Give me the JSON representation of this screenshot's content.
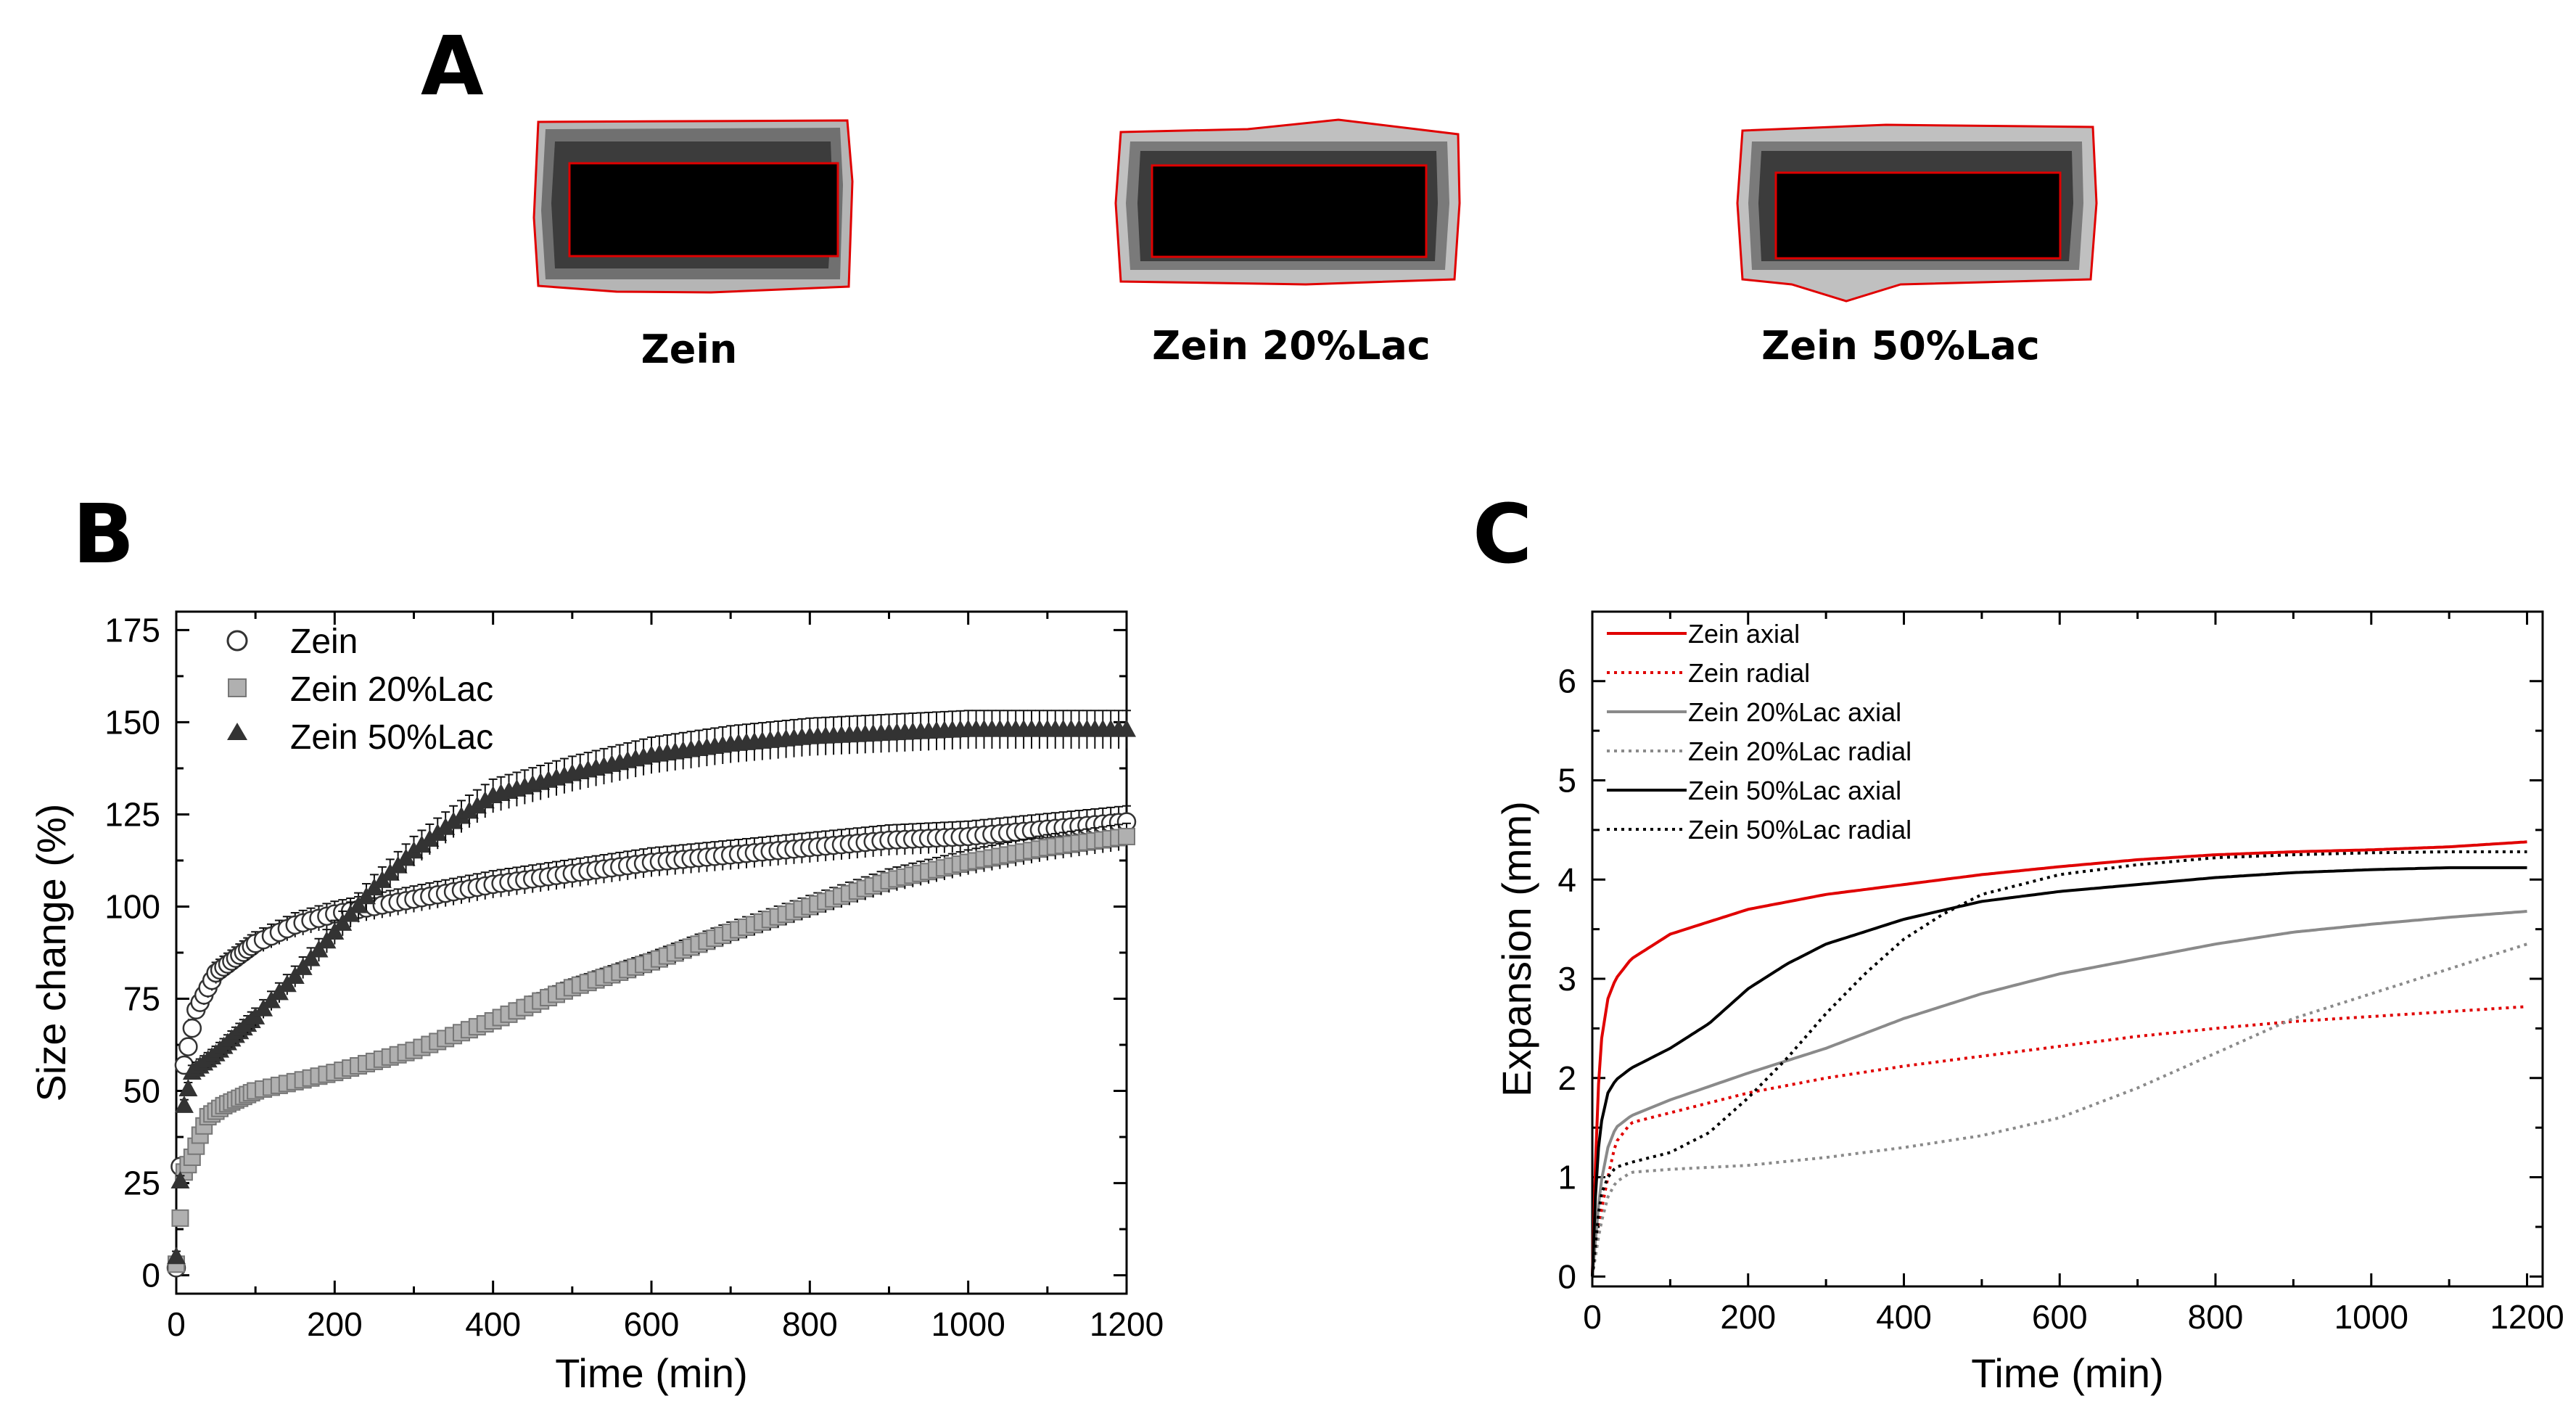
{
  "panel_a": {
    "letter": "A",
    "samples": [
      {
        "label": "Zein"
      },
      {
        "label": "Zein 20%Lac"
      },
      {
        "label": "Zein 50%Lac"
      }
    ]
  },
  "colors": {
    "zein": "#e00000",
    "lac20": "#8a8a8a",
    "lac50": "#000000",
    "outline": "#e00000"
  },
  "chart_data": [
    {
      "id": "B",
      "letter": "B",
      "type": "scatter",
      "xlabel": "Time (min)",
      "ylabel": "Size change (%)",
      "xlim": [
        0,
        1200
      ],
      "ylim": [
        -5,
        180
      ],
      "xticks": [
        0,
        200,
        400,
        600,
        800,
        1000,
        1200
      ],
      "yticks": [
        0,
        25,
        50,
        75,
        100,
        125,
        150,
        175
      ],
      "legend_position": "top-left",
      "error_bars": true,
      "series": [
        {
          "name": "Zein",
          "marker": "circle-open",
          "x": [
            0,
            10,
            25,
            50,
            100,
            150,
            200,
            300,
            400,
            500,
            600,
            700,
            800,
            900,
            1000,
            1100,
            1200
          ],
          "y": [
            2,
            57,
            72,
            82,
            90,
            95,
            98,
            102,
            106,
            109,
            112,
            114,
            116,
            118,
            119,
            121,
            123
          ]
        },
        {
          "name": "Zein 20%Lac",
          "marker": "square-gray",
          "x": [
            0,
            10,
            20,
            30,
            40,
            60,
            100,
            200,
            300,
            400,
            500,
            600,
            700,
            800,
            900,
            1000,
            1100,
            1200
          ],
          "y": [
            3,
            28,
            32,
            38,
            43,
            46,
            50,
            55,
            61,
            69,
            78,
            85,
            93,
            100,
            107,
            112,
            116,
            119
          ]
        },
        {
          "name": "Zein 50%Lac",
          "marker": "triangle-filled",
          "x": [
            0,
            10,
            20,
            50,
            100,
            150,
            200,
            250,
            300,
            350,
            400,
            500,
            600,
            700,
            800,
            900,
            1000,
            1100,
            1200
          ],
          "y": [
            5,
            46,
            55,
            60,
            70,
            81,
            93,
            105,
            115,
            123,
            130,
            136,
            141,
            144,
            146,
            147,
            148,
            148,
            148
          ]
        }
      ]
    },
    {
      "id": "C",
      "letter": "C",
      "type": "line",
      "xlabel": "Time (min)",
      "ylabel": "Expansion (mm)",
      "xlim": [
        0,
        1220
      ],
      "ylim": [
        -0.1,
        6.7
      ],
      "xticks": [
        0,
        200,
        400,
        600,
        800,
        1000,
        1200
      ],
      "yticks": [
        0,
        1,
        2,
        3,
        4,
        5,
        6
      ],
      "legend_position": "top-left",
      "series": [
        {
          "name": "Zein axial",
          "style": "solid",
          "color_key": "zein",
          "x": [
            0,
            5,
            10,
            20,
            30,
            50,
            100,
            200,
            300,
            400,
            500,
            600,
            700,
            800,
            900,
            1000,
            1100,
            1200
          ],
          "y": [
            0,
            1.4,
            2.3,
            2.8,
            3.0,
            3.2,
            3.45,
            3.7,
            3.85,
            3.95,
            4.05,
            4.13,
            4.2,
            4.25,
            4.28,
            4.3,
            4.33,
            4.38
          ]
        },
        {
          "name": "Zein radial",
          "style": "dotted",
          "color_key": "zein",
          "x": [
            0,
            10,
            20,
            30,
            50,
            100,
            200,
            300,
            400,
            500,
            600,
            700,
            800,
            900,
            1000,
            1100,
            1200
          ],
          "y": [
            0,
            0.6,
            1.0,
            1.35,
            1.55,
            1.65,
            1.85,
            2.0,
            2.12,
            2.22,
            2.32,
            2.42,
            2.5,
            2.57,
            2.62,
            2.67,
            2.72
          ]
        },
        {
          "name": "Zein 20%Lac axial",
          "style": "solid",
          "color_key": "lac20",
          "x": [
            0,
            10,
            20,
            30,
            50,
            100,
            200,
            300,
            400,
            500,
            600,
            700,
            800,
            900,
            1000,
            1100,
            1200
          ],
          "y": [
            0,
            0.9,
            1.3,
            1.5,
            1.62,
            1.78,
            2.05,
            2.3,
            2.6,
            2.85,
            3.05,
            3.2,
            3.35,
            3.47,
            3.55,
            3.62,
            3.68
          ]
        },
        {
          "name": "Zein 20%Lac radial",
          "style": "dotted",
          "color_key": "lac20",
          "x": [
            0,
            10,
            20,
            30,
            50,
            100,
            200,
            300,
            400,
            500,
            600,
            700,
            800,
            900,
            1000,
            1100,
            1200
          ],
          "y": [
            0,
            0.5,
            0.8,
            0.95,
            1.05,
            1.08,
            1.12,
            1.2,
            1.3,
            1.42,
            1.6,
            1.9,
            2.25,
            2.6,
            2.85,
            3.1,
            3.35
          ]
        },
        {
          "name": "Zein 50%Lac axial",
          "style": "solid",
          "color_key": "lac50",
          "x": [
            0,
            5,
            10,
            20,
            30,
            50,
            100,
            150,
            200,
            250,
            300,
            400,
            500,
            600,
            700,
            800,
            900,
            1000,
            1100,
            1200
          ],
          "y": [
            0,
            1.0,
            1.5,
            1.85,
            1.98,
            2.1,
            2.3,
            2.55,
            2.9,
            3.15,
            3.35,
            3.6,
            3.78,
            3.88,
            3.95,
            4.02,
            4.07,
            4.1,
            4.12,
            4.12
          ]
        },
        {
          "name": "Zein 50%Lac radial",
          "style": "dotted",
          "color_key": "lac50",
          "x": [
            0,
            10,
            20,
            30,
            50,
            100,
            150,
            200,
            250,
            300,
            350,
            400,
            450,
            500,
            600,
            700,
            800,
            900,
            1000,
            1100,
            1200
          ],
          "y": [
            0,
            0.8,
            1.0,
            1.1,
            1.15,
            1.25,
            1.45,
            1.8,
            2.2,
            2.65,
            3.05,
            3.4,
            3.65,
            3.85,
            4.05,
            4.15,
            4.22,
            4.25,
            4.27,
            4.28,
            4.28
          ]
        }
      ]
    }
  ]
}
